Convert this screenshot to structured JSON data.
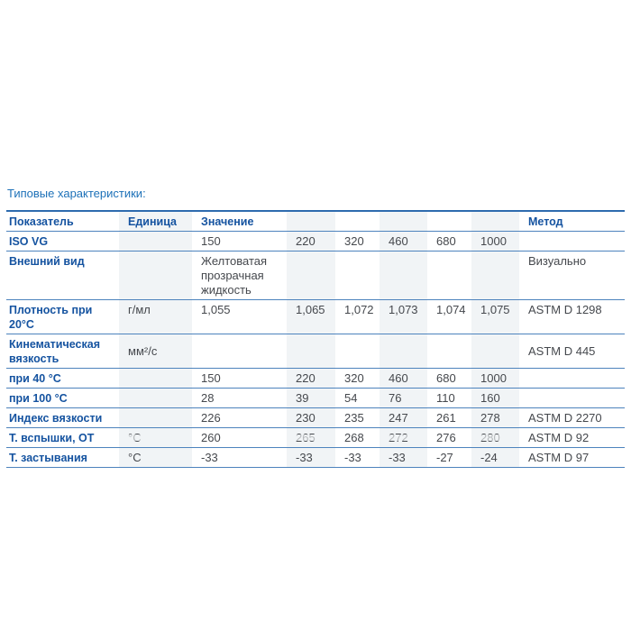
{
  "page": {
    "heading": "Типовые характеристики:"
  },
  "colors": {
    "heading_text": "#1d71b8",
    "label_text": "#1553a0",
    "value_text": "#45484d",
    "row_border": "#4d83bd",
    "top_border": "#2e6bae",
    "column_stripe": "#f1f4f6"
  },
  "table": {
    "headers": {
      "indicator": "Показатель",
      "unit": "Единица",
      "value": "Значение",
      "method": "Метод"
    },
    "rows": [
      {
        "label": "ISO VG",
        "unit": "",
        "values": [
          "150",
          "220",
          "320",
          "460",
          "680",
          "1000"
        ],
        "method": ""
      },
      {
        "label": "Внешний вид",
        "unit": "",
        "values": [
          "Желтоватая прозрачная жидкость",
          "",
          "",
          "",
          "",
          ""
        ],
        "method": "Визуально"
      },
      {
        "label": "Плотность при 20°C",
        "unit": "г/мл",
        "values": [
          "1,055",
          "1,065",
          "1,072",
          "1,073",
          "1,074",
          "1,075"
        ],
        "method": "ASTM D 1298"
      },
      {
        "label": "Кинематическая вязкость",
        "unit": "мм²/с",
        "values": [
          "",
          "",
          "",
          "",
          "",
          ""
        ],
        "method": "ASTM D 445"
      },
      {
        "label": "при 40 °C",
        "unit": "",
        "values": [
          "150",
          "220",
          "320",
          "460",
          "680",
          "1000"
        ],
        "method": ""
      },
      {
        "label": "при 100 °C",
        "unit": "",
        "values": [
          "28",
          "39",
          "54",
          "76",
          "110",
          "160"
        ],
        "method": ""
      },
      {
        "label": "Индекс вязкости",
        "unit": "",
        "values": [
          "226",
          "230",
          "235",
          "247",
          "261",
          "278"
        ],
        "method": "ASTM D 2270"
      },
      {
        "label": "Т. вспышки, ОТ",
        "unit": "°C",
        "values": [
          "260",
          "265",
          "268",
          "272",
          "276",
          "280"
        ],
        "method": "ASTM D 92"
      },
      {
        "label": "Т. застывания",
        "unit": "°C",
        "values": [
          "-33",
          "-33",
          "-33",
          "-33",
          "-27",
          "-24"
        ],
        "method": "ASTM D 97"
      }
    ]
  }
}
